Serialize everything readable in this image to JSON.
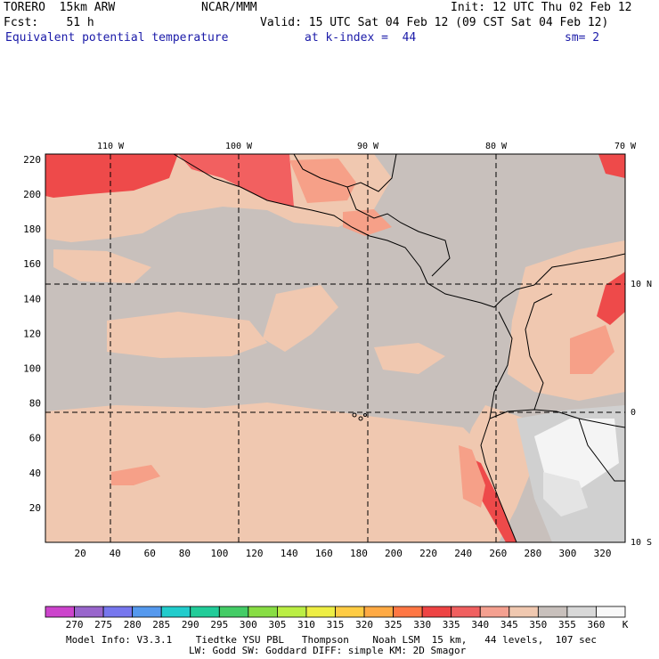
{
  "header": {
    "model": "TORERO  15km ARW",
    "org": "NCAR/MMM",
    "init": "Init: 12 UTC Thu 02 Feb 12",
    "fcst": "Fcst:    51 h",
    "valid": "Valid: 15 UTC Sat 04 Feb 12 (09 CST Sat 04 Feb 12)",
    "field": "Equivalent potential temperature",
    "level": "at k-index =  44",
    "smooth": "sm= 2"
  },
  "map": {
    "lon_labels": [
      "110 W",
      "100 W",
      "90 W",
      "80 W",
      "70 W"
    ],
    "lat_labels": [
      "10 N",
      "0",
      "10 S"
    ],
    "x_ticks": [
      "20",
      "40",
      "60",
      "80",
      "100",
      "120",
      "140",
      "160",
      "180",
      "200",
      "220",
      "240",
      "260",
      "280",
      "300",
      "320"
    ],
    "y_ticks": [
      "220",
      "200",
      "180",
      "160",
      "140",
      "120",
      "100",
      "80",
      "60",
      "40",
      "20"
    ],
    "colors": {
      "c335": "#ee4a4a",
      "c330": "#f26060",
      "c325": "#f6a088",
      "c320": "#f0c8b0",
      "c345": "#c8c0bc",
      "c350": "#d0d0d0",
      "c355": "#e4e4e4",
      "c360": "#f4f4f4"
    }
  },
  "colorbar": {
    "labels": [
      "270",
      "275",
      "280",
      "285",
      "290",
      "295",
      "300",
      "305",
      "310",
      "315",
      "320",
      "325",
      "330",
      "335",
      "340",
      "345",
      "350",
      "355",
      "360"
    ],
    "unit": "K",
    "colors": [
      "#cc44cc",
      "#9966cc",
      "#7777ee",
      "#5599ee",
      "#22cccc",
      "#22cc99",
      "#44cc66",
      "#88dd44",
      "#bbee44",
      "#eeee44",
      "#ffcc44",
      "#ffaa44",
      "#ff7744",
      "#ee4444",
      "#f06060",
      "#f4a090",
      "#f0c8b0",
      "#c8c0bc",
      "#d8d8d8",
      "#f8f8f8"
    ]
  },
  "info": {
    "line1": "Model Info: V3.3.1    Tiedtke YSU PBL   Thompson    Noah LSM  15 km,   44 levels,  107 sec",
    "line2": "LW: Godd SW: Goddard DIFF: simple KM: 2D Smagor"
  }
}
